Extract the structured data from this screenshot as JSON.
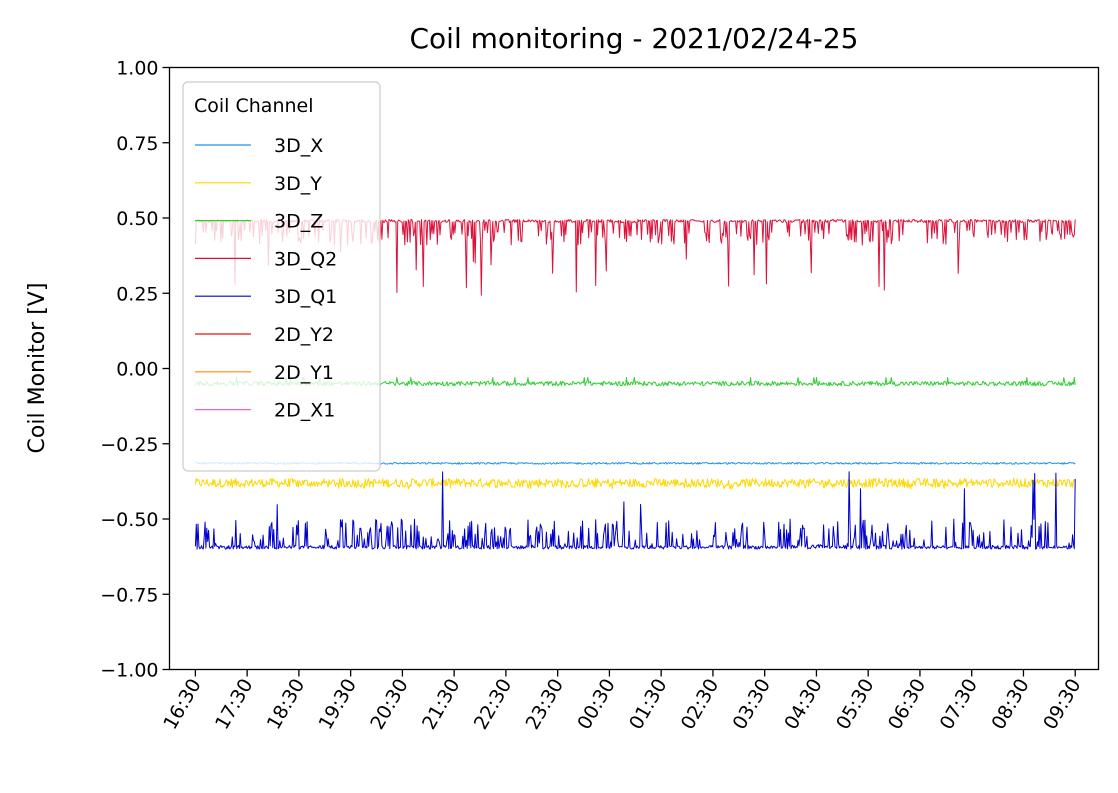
{
  "chart_data": {
    "type": "line",
    "title": "Coil monitoring - 2021/02/24-25",
    "xlabel": "",
    "ylabel": "Coil Monitor [V]",
    "ylim": [
      -1.0,
      1.0
    ],
    "yticks": [
      -1.0,
      -0.75,
      -0.5,
      -0.25,
      0.0,
      0.25,
      0.5,
      0.75,
      1.0
    ],
    "ytick_labels": [
      "−1.00",
      "−0.75",
      "−0.50",
      "−0.25",
      "0.00",
      "0.25",
      "0.50",
      "0.75",
      "1.00"
    ],
    "xlim": [
      "16:00",
      "09:57"
    ],
    "xtick_labels": [
      "16:30",
      "17:30",
      "18:30",
      "19:30",
      "20:30",
      "21:30",
      "22:30",
      "23:30",
      "00:30",
      "01:30",
      "02:30",
      "03:30",
      "04:30",
      "05:30",
      "06:30",
      "07:30",
      "08:30",
      "09:30"
    ],
    "x_range": [
      "16:30",
      "09:30"
    ],
    "grid": false,
    "legend": {
      "title": "Coil Channel",
      "placement": "upper-left"
    },
    "series": [
      {
        "name": "3D_X",
        "color": "#1f93ee",
        "baseline": -0.315,
        "upper": -0.31,
        "lower": -0.32
      },
      {
        "name": "3D_Y",
        "color": "#ffd700",
        "baseline": -0.37,
        "upper": -0.35,
        "lower": -0.4
      },
      {
        "name": "3D_Z",
        "color": "#32cd32",
        "baseline": -0.05,
        "upper": -0.03,
        "lower": -0.06
      },
      {
        "name": "3D_Q2",
        "color": "#dc143c",
        "baseline": 0.49,
        "upper": 0.495,
        "lower": 0.24
      },
      {
        "name": "3D_Q1",
        "color": "#0000cd",
        "baseline": -0.6,
        "upper": -0.31,
        "lower": -0.61
      },
      {
        "name": "2D_Y2",
        "color": "#e8100e",
        "baseline": null
      },
      {
        "name": "2D_Y1",
        "color": "#ff8c00",
        "baseline": null
      },
      {
        "name": "2D_X1",
        "color": "#f062c8",
        "baseline": null
      }
    ]
  }
}
